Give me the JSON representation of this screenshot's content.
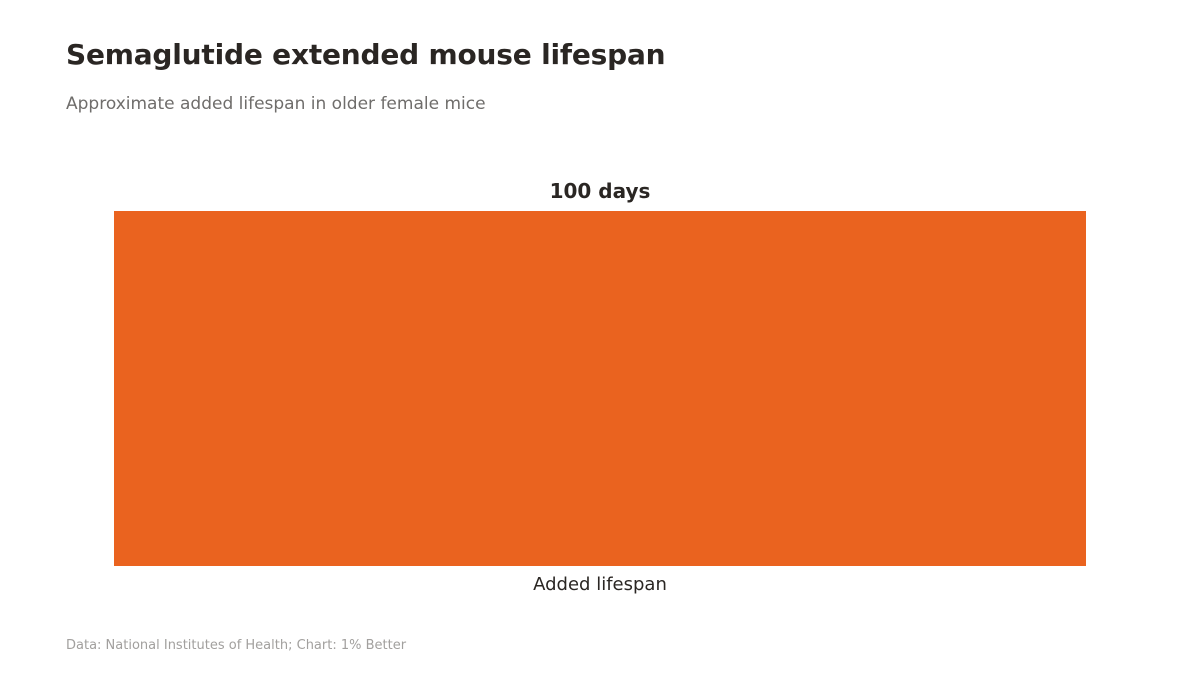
{
  "header": {
    "title": "Semaglutide extended mouse lifespan",
    "subtitle": "Approximate added lifespan in older female mice"
  },
  "footer": {
    "source": "Data: National Institutes of Health; Chart: 1% Better"
  },
  "colors": {
    "bar": "#ea631f",
    "text": "#2a2623"
  },
  "chart_data": {
    "type": "bar",
    "categories": [
      "Added lifespan"
    ],
    "values": [
      100
    ],
    "data_labels": [
      "100 days"
    ],
    "title": "Semaglutide extended mouse lifespan",
    "subtitle": "Approximate added lifespan in older female mice",
    "xlabel": "",
    "ylabel": "",
    "ylim": [
      0,
      100
    ],
    "grid": false,
    "legend": "none"
  }
}
